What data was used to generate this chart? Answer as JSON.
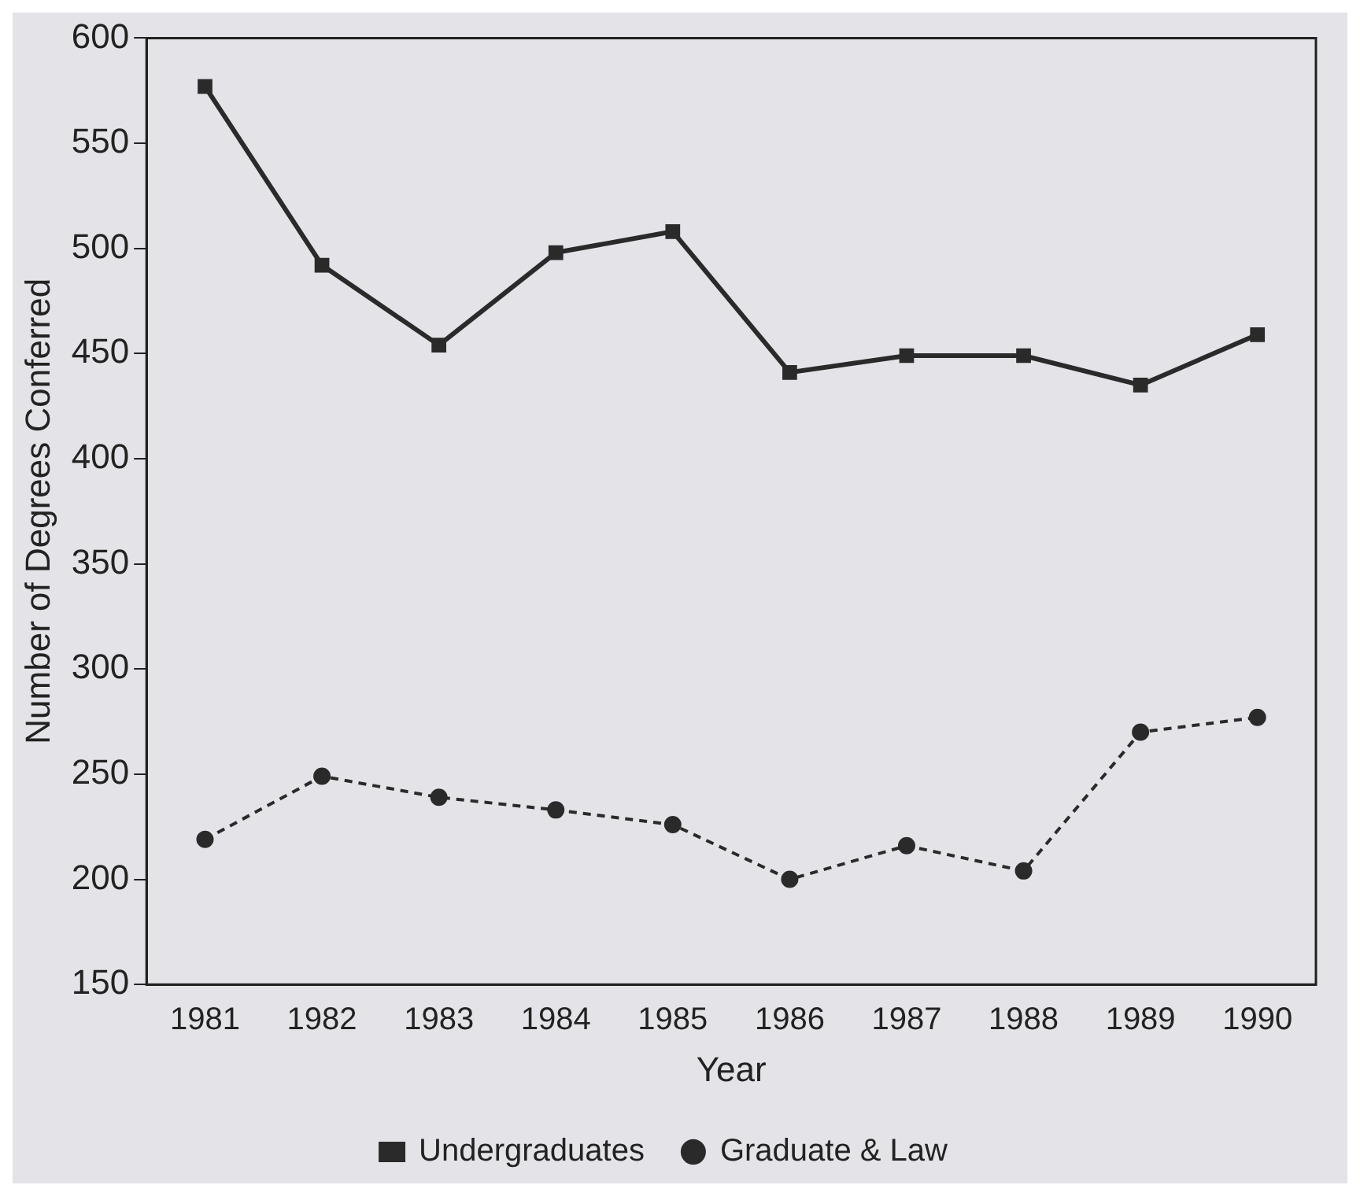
{
  "chart_data": {
    "type": "line",
    "xlabel": "Year",
    "ylabel": "Number of Degrees Conferred",
    "categories": [
      "1981",
      "1982",
      "1983",
      "1984",
      "1985",
      "1986",
      "1987",
      "1988",
      "1989",
      "1990"
    ],
    "series": [
      {
        "name": "Undergraduates",
        "color": "#2a2a2a",
        "marker": "square",
        "line_style": "solid",
        "values": [
          577,
          492,
          454,
          498,
          508,
          441,
          449,
          449,
          435,
          459
        ]
      },
      {
        "name": "Graduate & Law",
        "color": "#2a2a2a",
        "marker": "circle",
        "line_style": "dashed",
        "values": [
          219,
          249,
          239,
          233,
          226,
          200,
          216,
          204,
          270,
          277
        ]
      }
    ],
    "ylim": [
      150,
      600
    ],
    "yticks": [
      150,
      200,
      250,
      300,
      350,
      400,
      450,
      500,
      550,
      600
    ],
    "grid": false,
    "legend": "bottom"
  }
}
